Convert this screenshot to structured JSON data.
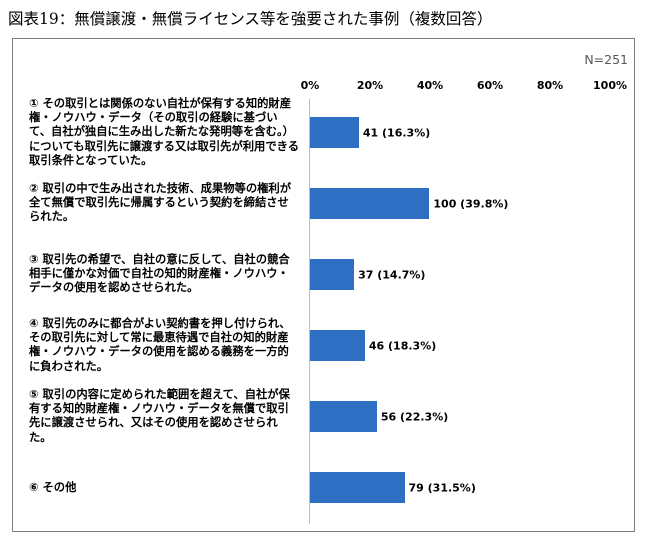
{
  "title": "図表19：無償譲渡・無償ライセンス等を強要された事例（複数回答）",
  "n_label": "N=251",
  "chart_data": {
    "type": "bar",
    "orientation": "horizontal",
    "xlim": [
      0,
      100
    ],
    "ticks": [
      "0%",
      "20%",
      "40%",
      "60%",
      "80%",
      "100%"
    ],
    "grid": false,
    "color": "#2f6fc3",
    "categories": [
      "① その取引とは関係のない自社が保有する知的財産権・ノウハウ・データ（その取引の経験に基づいて、自社が独自に生み出した新たな発明等を含む。）についても取引先に譲渡する又は取引先が利用できる取引条件となっていた。",
      "② 取引の中で生み出された技術、成果物等の権利が全て無償で取引先に帰属するという契約を締結させられた。",
      "③ 取引先の希望で、自社の意に反して、自社の競合相手に僅かな対価で自社の知的財産権・ノウハウ・データの使用を認めさせられた。",
      "④ 取引先のみに都合がよい契約書を押し付けられ、その取引先に対して常に最恵待遇で自社の知的財産権・ノウハウ・データの使用を認める義務を一方的に負わされた。",
      "⑤ 取引の内容に定められた範囲を超えて、自社が保有する知的財産権・ノウハウ・データを無償で取引先に譲渡させられ、又はその使用を認めさせられた。",
      "⑥ その他"
    ],
    "values": [
      16.3,
      39.8,
      14.7,
      18.3,
      22.3,
      31.5
    ],
    "counts": [
      41,
      100,
      37,
      46,
      56,
      79
    ],
    "data_labels": [
      "41 (16.3%)",
      "100 (39.8%)",
      "37 (14.7%)",
      "46 (18.3%)",
      "56 (22.3%)",
      "79 (31.5%)"
    ]
  }
}
